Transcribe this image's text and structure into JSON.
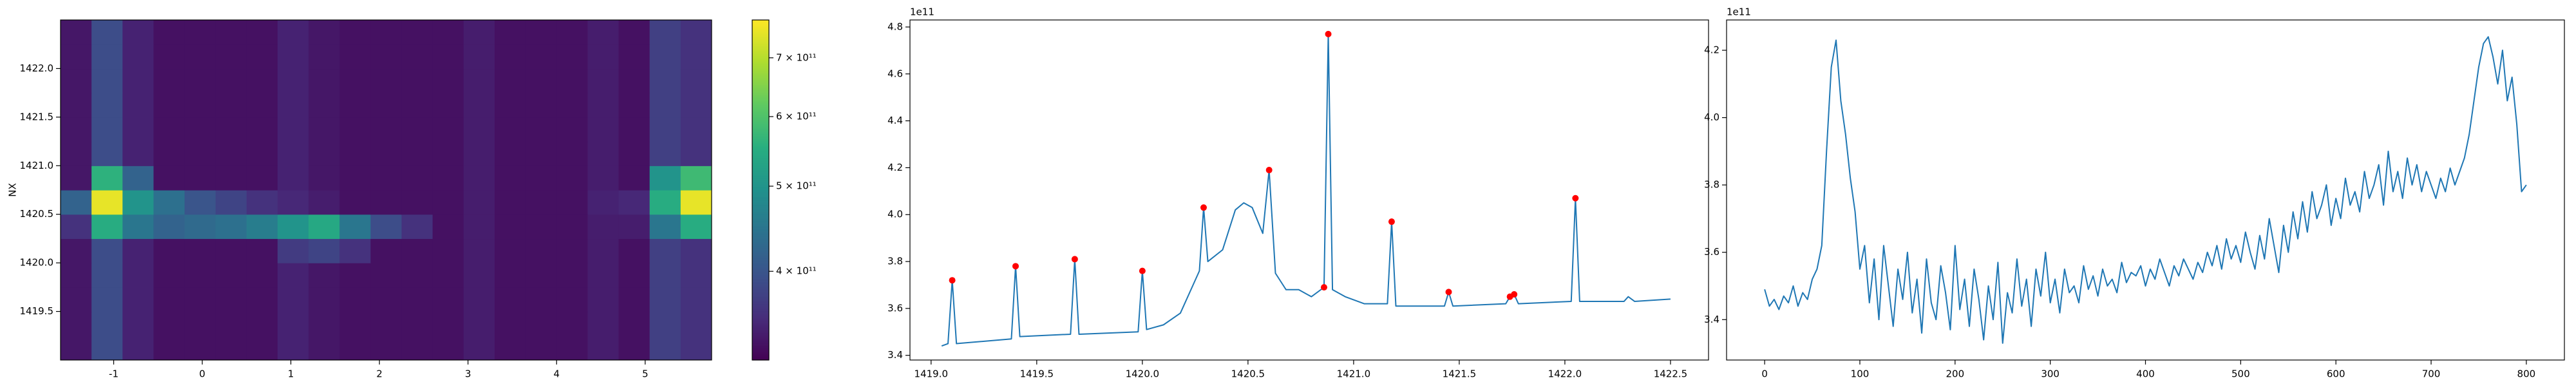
{
  "chart_data": [
    {
      "type": "heatmap",
      "ylabel": "NX",
      "colormap": "viridis",
      "zscale": "log",
      "xlim": [
        -1.6,
        5.75
      ],
      "ylim": [
        1419.0,
        1422.5
      ],
      "xticks": [
        -1,
        0,
        1,
        2,
        3,
        4,
        5
      ],
      "yticks": [
        1419.5,
        {
          "value": 1420,
          "label": "1420.0"
        },
        1420.5,
        {
          "value": 1421,
          "label": "1421.0"
        },
        1421.5,
        {
          "value": 1422,
          "label": "1422.0"
        }
      ],
      "xbins": [
        -1.6,
        -1.25,
        -0.9,
        -0.55,
        -0.2,
        0.15,
        0.5,
        0.85,
        1.2,
        1.55,
        1.9,
        2.25,
        2.6,
        2.95,
        3.3,
        3.65,
        4.0,
        4.35,
        4.7,
        5.05,
        5.4,
        5.75
      ],
      "ybins": [
        1419.0,
        1419.25,
        1419.5,
        1419.75,
        1420.0,
        1420.25,
        1420.5,
        1420.75,
        1421.0,
        1421.25,
        1421.5,
        1421.75,
        1422.0,
        1422.25,
        1422.5
      ],
      "z": [
        [
          335000000000.0,
          390000000000.0,
          345000000000.0,
          330000000000.0,
          330000000000.0,
          330000000000.0,
          330000000000.0,
          345000000000.0,
          335000000000.0,
          330000000000.0,
          330000000000.0,
          330000000000.0,
          330000000000.0,
          340000000000.0,
          330000000000.0,
          330000000000.0,
          330000000000.0,
          340000000000.0,
          330000000000.0,
          375000000000.0,
          360000000000.0
        ],
        [
          335000000000.0,
          390000000000.0,
          345000000000.0,
          330000000000.0,
          330000000000.0,
          330000000000.0,
          330000000000.0,
          345000000000.0,
          335000000000.0,
          330000000000.0,
          330000000000.0,
          330000000000.0,
          330000000000.0,
          340000000000.0,
          330000000000.0,
          330000000000.0,
          330000000000.0,
          340000000000.0,
          330000000000.0,
          375000000000.0,
          360000000000.0
        ],
        [
          335000000000.0,
          390000000000.0,
          345000000000.0,
          330000000000.0,
          330000000000.0,
          330000000000.0,
          330000000000.0,
          345000000000.0,
          335000000000.0,
          330000000000.0,
          330000000000.0,
          330000000000.0,
          330000000000.0,
          340000000000.0,
          330000000000.0,
          330000000000.0,
          330000000000.0,
          340000000000.0,
          330000000000.0,
          375000000000.0,
          360000000000.0
        ],
        [
          335000000000.0,
          390000000000.0,
          345000000000.0,
          330000000000.0,
          330000000000.0,
          330000000000.0,
          330000000000.0,
          345000000000.0,
          335000000000.0,
          330000000000.0,
          330000000000.0,
          330000000000.0,
          330000000000.0,
          340000000000.0,
          330000000000.0,
          330000000000.0,
          330000000000.0,
          340000000000.0,
          330000000000.0,
          375000000000.0,
          360000000000.0
        ],
        [
          335000000000.0,
          390000000000.0,
          345000000000.0,
          330000000000.0,
          330000000000.0,
          330000000000.0,
          330000000000.0,
          370000000000.0,
          380000000000.0,
          360000000000.0,
          330000000000.0,
          330000000000.0,
          330000000000.0,
          340000000000.0,
          330000000000.0,
          330000000000.0,
          330000000000.0,
          340000000000.0,
          330000000000.0,
          375000000000.0,
          360000000000.0
        ],
        [
          360000000000.0,
          550000000000.0,
          450000000000.0,
          420000000000.0,
          430000000000.0,
          440000000000.0,
          460000000000.0,
          500000000000.0,
          540000000000.0,
          450000000000.0,
          390000000000.0,
          360000000000.0,
          330000000000.0,
          340000000000.0,
          330000000000.0,
          330000000000.0,
          330000000000.0,
          340000000000.0,
          340000000000.0,
          450000000000.0,
          550000000000.0
        ],
        [
          420000000000.0,
          750000000000.0,
          500000000000.0,
          440000000000.0,
          400000000000.0,
          380000000000.0,
          360000000000.0,
          350000000000.0,
          340000000000.0,
          330000000000.0,
          330000000000.0,
          330000000000.0,
          330000000000.0,
          340000000000.0,
          330000000000.0,
          330000000000.0,
          330000000000.0,
          345000000000.0,
          350000000000.0,
          550000000000.0,
          750000000000.0
        ],
        [
          335000000000.0,
          560000000000.0,
          420000000000.0,
          330000000000.0,
          330000000000.0,
          330000000000.0,
          330000000000.0,
          345000000000.0,
          335000000000.0,
          330000000000.0,
          330000000000.0,
          330000000000.0,
          330000000000.0,
          340000000000.0,
          330000000000.0,
          330000000000.0,
          330000000000.0,
          340000000000.0,
          330000000000.0,
          500000000000.0,
          580000000000.0
        ],
        [
          335000000000.0,
          390000000000.0,
          345000000000.0,
          330000000000.0,
          330000000000.0,
          330000000000.0,
          330000000000.0,
          345000000000.0,
          335000000000.0,
          330000000000.0,
          330000000000.0,
          330000000000.0,
          330000000000.0,
          340000000000.0,
          330000000000.0,
          330000000000.0,
          330000000000.0,
          340000000000.0,
          330000000000.0,
          375000000000.0,
          360000000000.0
        ],
        [
          335000000000.0,
          390000000000.0,
          345000000000.0,
          330000000000.0,
          330000000000.0,
          330000000000.0,
          330000000000.0,
          345000000000.0,
          335000000000.0,
          330000000000.0,
          330000000000.0,
          330000000000.0,
          330000000000.0,
          340000000000.0,
          330000000000.0,
          330000000000.0,
          330000000000.0,
          340000000000.0,
          330000000000.0,
          375000000000.0,
          360000000000.0
        ],
        [
          335000000000.0,
          390000000000.0,
          345000000000.0,
          330000000000.0,
          330000000000.0,
          330000000000.0,
          330000000000.0,
          345000000000.0,
          335000000000.0,
          330000000000.0,
          330000000000.0,
          330000000000.0,
          330000000000.0,
          340000000000.0,
          330000000000.0,
          330000000000.0,
          330000000000.0,
          340000000000.0,
          330000000000.0,
          375000000000.0,
          360000000000.0
        ],
        [
          335000000000.0,
          390000000000.0,
          345000000000.0,
          330000000000.0,
          330000000000.0,
          330000000000.0,
          330000000000.0,
          345000000000.0,
          335000000000.0,
          330000000000.0,
          330000000000.0,
          330000000000.0,
          330000000000.0,
          340000000000.0,
          330000000000.0,
          330000000000.0,
          330000000000.0,
          340000000000.0,
          330000000000.0,
          375000000000.0,
          360000000000.0
        ],
        [
          335000000000.0,
          390000000000.0,
          345000000000.0,
          330000000000.0,
          330000000000.0,
          330000000000.0,
          330000000000.0,
          345000000000.0,
          335000000000.0,
          330000000000.0,
          330000000000.0,
          330000000000.0,
          330000000000.0,
          340000000000.0,
          330000000000.0,
          330000000000.0,
          330000000000.0,
          340000000000.0,
          330000000000.0,
          375000000000.0,
          360000000000.0
        ],
        [
          335000000000.0,
          390000000000.0,
          345000000000.0,
          330000000000.0,
          330000000000.0,
          330000000000.0,
          330000000000.0,
          345000000000.0,
          335000000000.0,
          330000000000.0,
          330000000000.0,
          330000000000.0,
          330000000000.0,
          340000000000.0,
          330000000000.0,
          330000000000.0,
          330000000000.0,
          340000000000.0,
          330000000000.0,
          375000000000.0,
          360000000000.0
        ]
      ],
      "clim": [
        317000000000.0,
        773000000000.0
      ],
      "cticks": [
        {
          "value": 400000000000.0,
          "label": "4 × 10¹¹"
        },
        {
          "value": 500000000000.0,
          "label": "5 × 10¹¹"
        },
        {
          "value": 600000000000.0,
          "label": "6 × 10¹¹"
        },
        {
          "value": 700000000000.0,
          "label": "7 × 10¹¹"
        }
      ]
    },
    {
      "type": "line",
      "y_offset_label": "1e11",
      "xlim": [
        1418.9,
        1422.68
      ],
      "ylim": [
        3.38,
        4.83
      ],
      "xticks": [
        {
          "value": 1419,
          "label": "1419.0"
        },
        1419.5,
        {
          "value": 1420,
          "label": "1420.0"
        },
        1420.5,
        {
          "value": 1421,
          "label": "1421.0"
        },
        1421.5,
        {
          "value": 1422,
          "label": "1422.0"
        },
        1422.5
      ],
      "yticks": [
        3.4,
        3.6,
        3.8,
        {
          "value": 4,
          "label": "4.0"
        },
        4.2,
        4.4,
        4.6,
        4.8
      ],
      "series": [
        {
          "color": "#1f77b4",
          "mode": "line",
          "x": [
            1419.05,
            1419.08,
            1419.1,
            1419.12,
            1419.38,
            1419.4,
            1419.42,
            1419.66,
            1419.68,
            1419.7,
            1419.98,
            1420.0,
            1420.02,
            1420.1,
            1420.18,
            1420.24,
            1420.27,
            1420.29,
            1420.31,
            1420.38,
            1420.44,
            1420.48,
            1420.52,
            1420.57,
            1420.6,
            1420.63,
            1420.68,
            1420.74,
            1420.8,
            1420.86,
            1420.88,
            1420.9,
            1420.96,
            1421.05,
            1421.16,
            1421.18,
            1421.2,
            1421.43,
            1421.45,
            1421.47,
            1421.72,
            1421.74,
            1421.76,
            1421.78,
            1422.03,
            1422.05,
            1422.07,
            1422.28,
            1422.3,
            1422.33,
            1422.5
          ],
          "values": [
            3.44,
            3.45,
            3.72,
            3.45,
            3.47,
            3.78,
            3.48,
            3.49,
            3.81,
            3.49,
            3.5,
            3.76,
            3.51,
            3.53,
            3.58,
            3.7,
            3.76,
            4.03,
            3.8,
            3.85,
            4.02,
            4.05,
            4.03,
            3.92,
            4.19,
            3.75,
            3.68,
            3.68,
            3.65,
            3.69,
            4.77,
            3.68,
            3.65,
            3.62,
            3.62,
            3.97,
            3.61,
            3.61,
            3.67,
            3.61,
            3.62,
            3.65,
            3.66,
            3.62,
            3.63,
            4.07,
            3.63,
            3.63,
            3.65,
            3.63,
            3.64
          ]
        },
        {
          "color": "#ff0000",
          "mode": "markers",
          "x": [
            1419.1,
            1419.4,
            1419.68,
            1420.0,
            1420.29,
            1420.6,
            1420.86,
            1420.88,
            1421.18,
            1421.45,
            1421.74,
            1421.76,
            1422.05
          ],
          "values": [
            3.72,
            3.78,
            3.81,
            3.76,
            4.03,
            4.19,
            3.69,
            4.77,
            3.97,
            3.67,
            3.65,
            3.66,
            4.07
          ]
        }
      ]
    },
    {
      "type": "line",
      "y_offset_label": "1e11",
      "xlim": [
        -40,
        840
      ],
      "ylim": [
        3.28,
        4.29
      ],
      "xticks": [
        0,
        100,
        200,
        300,
        400,
        500,
        600,
        700,
        800
      ],
      "yticks": [
        3.4,
        3.6,
        3.8,
        {
          "value": 4,
          "label": "4.0"
        },
        4.2
      ],
      "series": [
        {
          "color": "#1f77b4",
          "mode": "line",
          "x": [
            0,
            5,
            10,
            15,
            20,
            25,
            30,
            35,
            40,
            45,
            50,
            55,
            60,
            65,
            70,
            75,
            80,
            85,
            90,
            95,
            100,
            105,
            110,
            115,
            120,
            125,
            130,
            135,
            140,
            145,
            150,
            155,
            160,
            165,
            170,
            175,
            180,
            185,
            190,
            195,
            200,
            205,
            210,
            215,
            220,
            225,
            230,
            235,
            240,
            245,
            250,
            255,
            260,
            265,
            270,
            275,
            280,
            285,
            290,
            295,
            300,
            305,
            310,
            315,
            320,
            325,
            330,
            335,
            340,
            345,
            350,
            355,
            360,
            365,
            370,
            375,
            380,
            385,
            390,
            395,
            400,
            405,
            410,
            415,
            420,
            425,
            430,
            435,
            440,
            445,
            450,
            455,
            460,
            465,
            470,
            475,
            480,
            485,
            490,
            495,
            500,
            505,
            510,
            515,
            520,
            525,
            530,
            535,
            540,
            545,
            550,
            555,
            560,
            565,
            570,
            575,
            580,
            585,
            590,
            595,
            600,
            605,
            610,
            615,
            620,
            625,
            630,
            635,
            640,
            645,
            650,
            655,
            660,
            665,
            670,
            675,
            680,
            685,
            690,
            695,
            700,
            705,
            710,
            715,
            720,
            725,
            730,
            735,
            740,
            745,
            750,
            755,
            760,
            765,
            770,
            775,
            780,
            785,
            790,
            795,
            800
          ],
          "values": [
            3.49,
            3.44,
            3.46,
            3.43,
            3.47,
            3.45,
            3.5,
            3.44,
            3.48,
            3.46,
            3.52,
            3.55,
            3.62,
            3.9,
            4.15,
            4.23,
            4.05,
            3.95,
            3.82,
            3.72,
            3.55,
            3.62,
            3.45,
            3.58,
            3.4,
            3.62,
            3.5,
            3.38,
            3.55,
            3.46,
            3.6,
            3.42,
            3.52,
            3.36,
            3.58,
            3.45,
            3.4,
            3.56,
            3.48,
            3.37,
            3.62,
            3.43,
            3.52,
            3.38,
            3.55,
            3.46,
            3.34,
            3.5,
            3.4,
            3.57,
            3.33,
            3.48,
            3.42,
            3.58,
            3.44,
            3.52,
            3.38,
            3.55,
            3.47,
            3.6,
            3.45,
            3.52,
            3.42,
            3.55,
            3.48,
            3.5,
            3.45,
            3.56,
            3.49,
            3.53,
            3.47,
            3.55,
            3.5,
            3.52,
            3.48,
            3.57,
            3.51,
            3.54,
            3.53,
            3.56,
            3.5,
            3.55,
            3.52,
            3.58,
            3.54,
            3.5,
            3.56,
            3.53,
            3.58,
            3.55,
            3.52,
            3.57,
            3.54,
            3.6,
            3.56,
            3.62,
            3.55,
            3.64,
            3.58,
            3.62,
            3.57,
            3.66,
            3.6,
            3.55,
            3.65,
            3.58,
            3.7,
            3.62,
            3.54,
            3.68,
            3.6,
            3.72,
            3.64,
            3.75,
            3.66,
            3.78,
            3.7,
            3.74,
            3.8,
            3.68,
            3.76,
            3.7,
            3.82,
            3.74,
            3.78,
            3.72,
            3.84,
            3.76,
            3.8,
            3.86,
            3.74,
            3.9,
            3.78,
            3.84,
            3.76,
            3.88,
            3.8,
            3.86,
            3.78,
            3.84,
            3.8,
            3.76,
            3.82,
            3.78,
            3.85,
            3.8,
            3.84,
            3.88,
            3.95,
            4.05,
            4.15,
            4.22,
            4.24,
            4.18,
            4.1,
            4.2,
            4.05,
            4.12,
            3.98,
            3.78,
            3.8
          ]
        }
      ]
    }
  ]
}
